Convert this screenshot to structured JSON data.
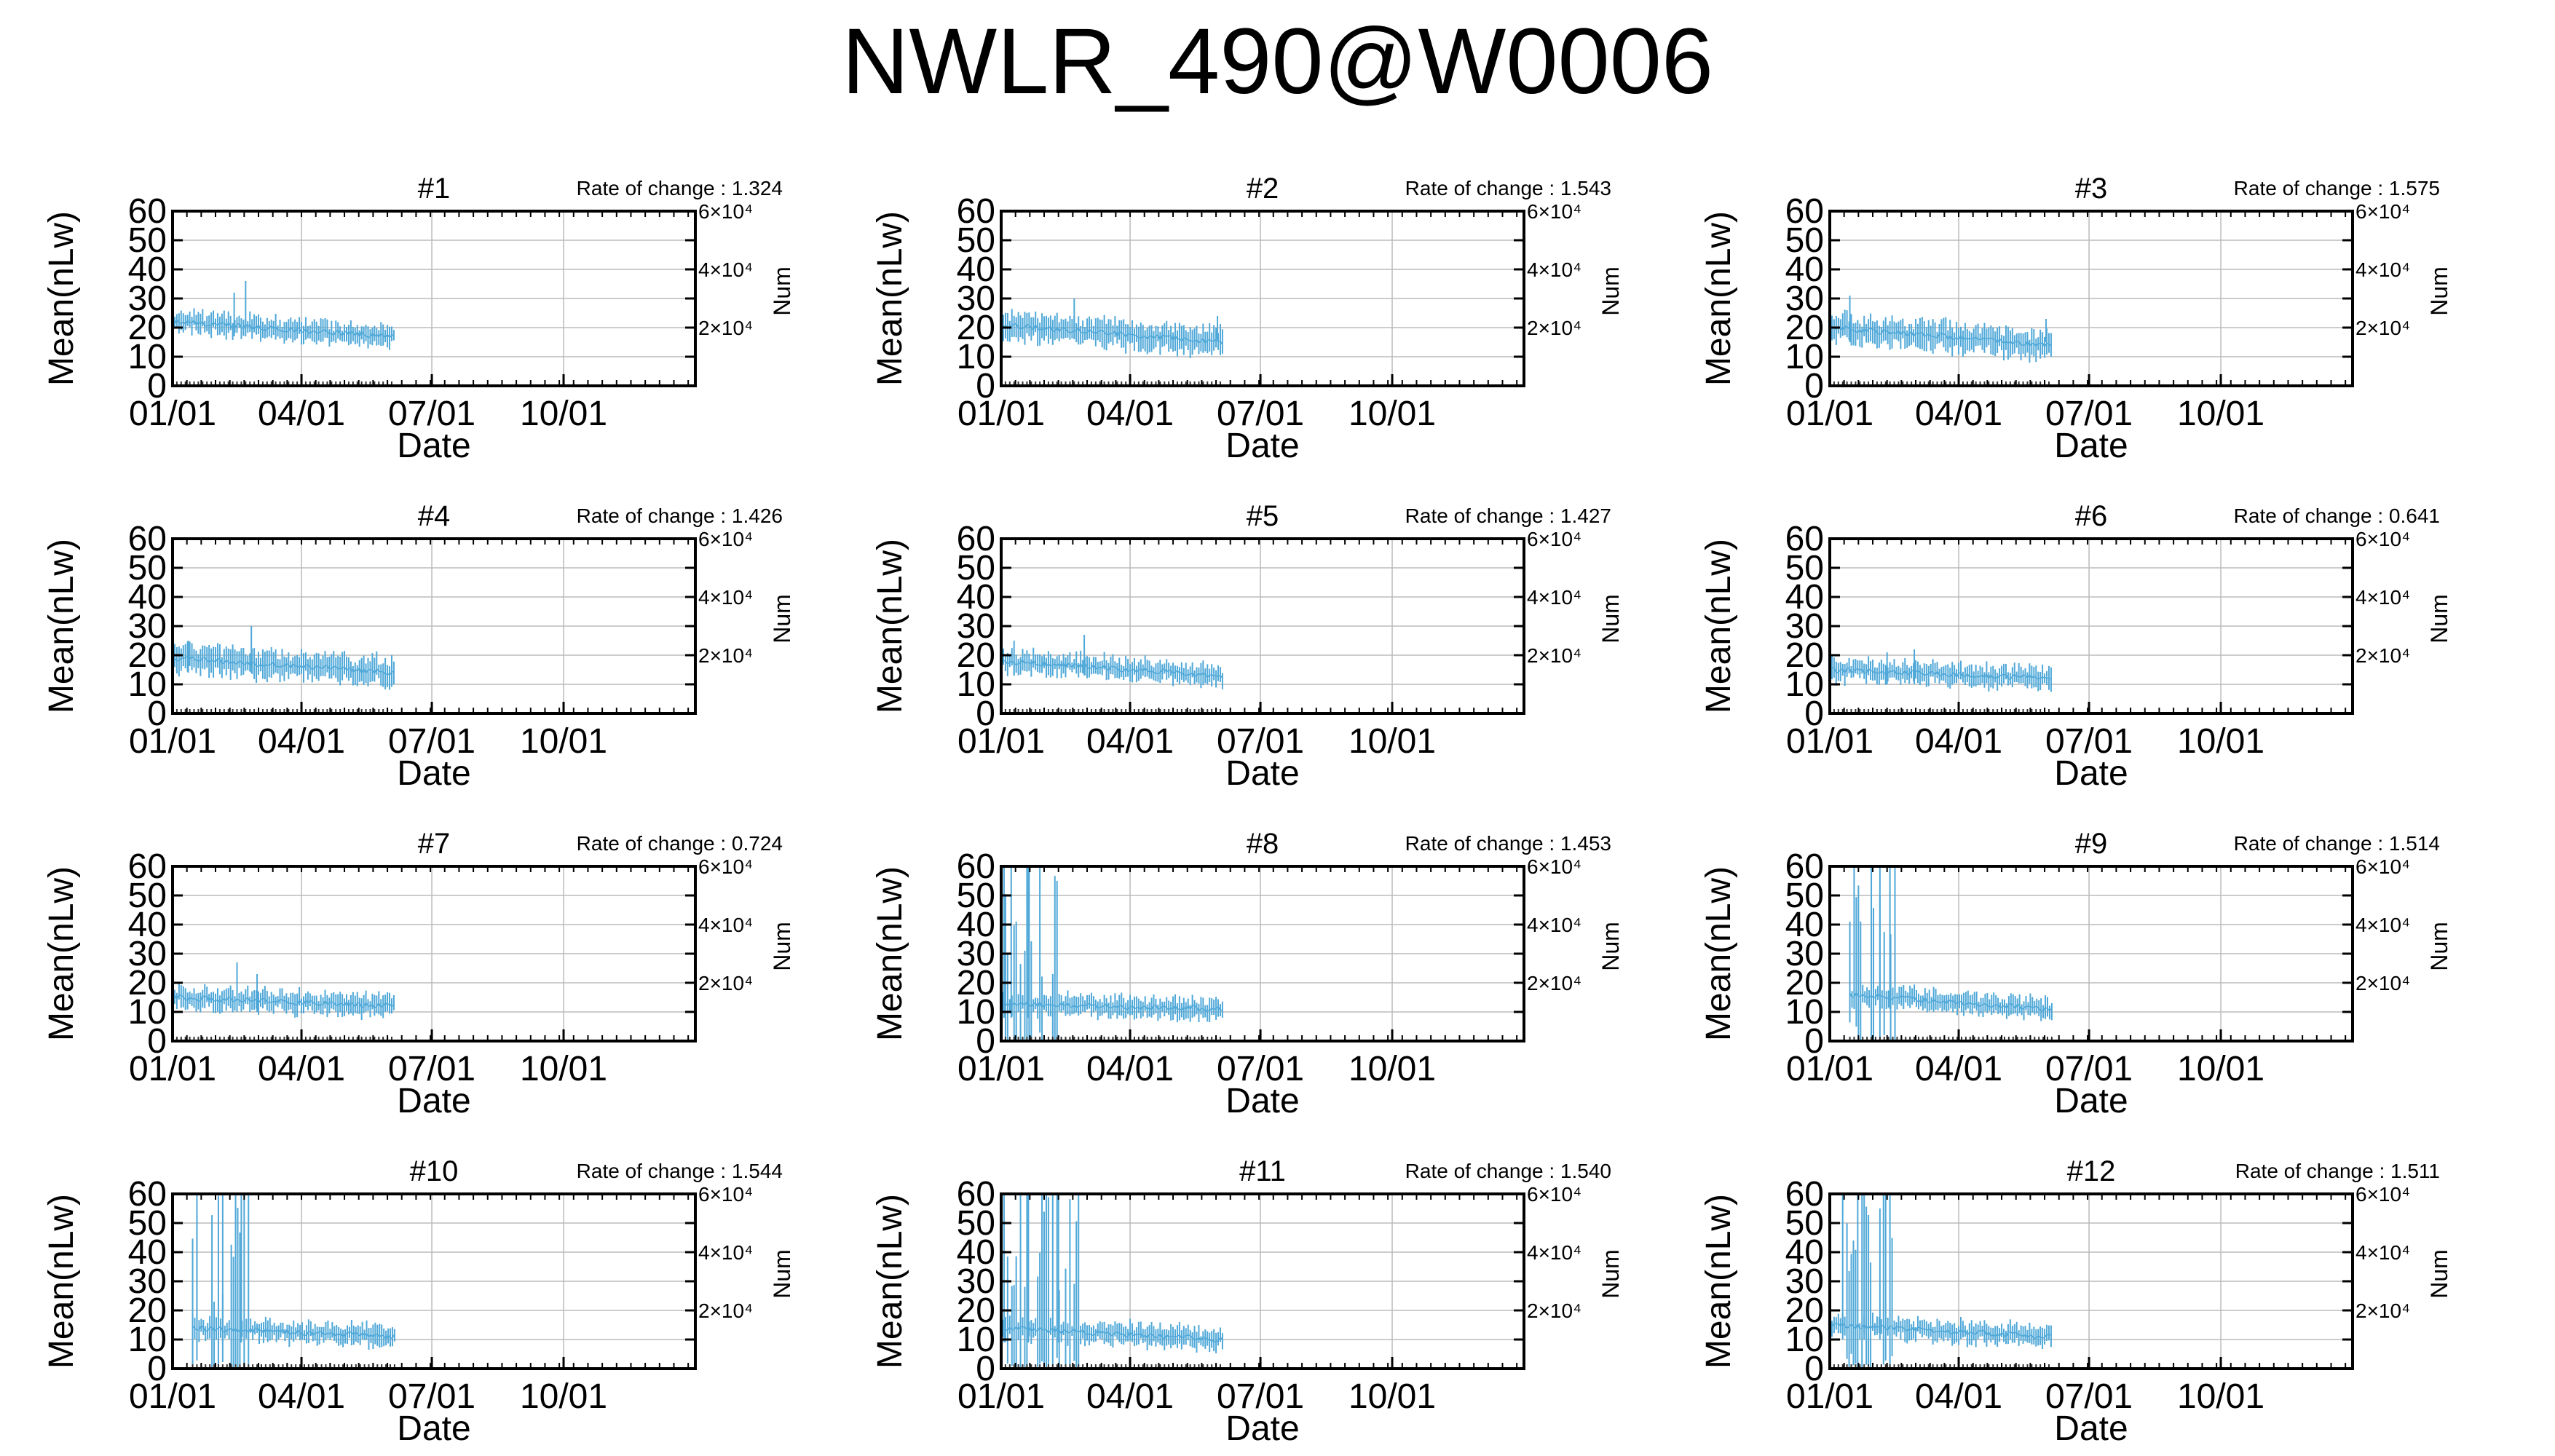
{
  "figure": {
    "title": "NWLR_490@W0006"
  },
  "colors": {
    "series": "#4fa8d8",
    "grid": "#bbbbbb",
    "frame": "#000000"
  },
  "chart_data": [
    {
      "type": "line",
      "title": "#1",
      "rate_label": "Rate of change : 1.324",
      "xlabel": "Date",
      "ylabel": "Mean(nLw)",
      "y2label": "Num",
      "x_ticks": [
        "01/01",
        "04/01",
        "07/01",
        "10/01"
      ],
      "y_ticks": [
        "0",
        "10",
        "20",
        "30",
        "40",
        "50",
        "60"
      ],
      "y2_ticks": [
        "2×10⁴",
        "4×10⁴",
        "6×10⁴"
      ],
      "ylim": [
        0,
        60
      ],
      "y2lim": [
        0,
        60000
      ],
      "x_range_days": [
        0,
        365
      ],
      "grid": true,
      "series": {
        "date_range": [
          "01/01",
          "06/05"
        ],
        "mean_start": 22,
        "mean_end": 17,
        "spread": 3,
        "spikes": [
          {
            "date": "02/21",
            "value": 36
          },
          {
            "date": "02/13",
            "value": 32
          }
        ]
      }
    },
    {
      "type": "line",
      "title": "#2",
      "rate_label": "Rate of change : 1.543",
      "xlabel": "Date",
      "ylabel": "Mean(nLw)",
      "y2label": "Num",
      "x_ticks": [
        "01/01",
        "04/01",
        "07/01",
        "10/01"
      ],
      "y_ticks": [
        "0",
        "10",
        "20",
        "30",
        "40",
        "50",
        "60"
      ],
      "y2_ticks": [
        "2×10⁴",
        "4×10⁴",
        "6×10⁴"
      ],
      "ylim": [
        0,
        60
      ],
      "y2lim": [
        0,
        60000
      ],
      "x_range_days": [
        0,
        365
      ],
      "grid": true,
      "series": {
        "date_range": [
          "01/01",
          "06/05"
        ],
        "mean_start": 21,
        "mean_end": 15,
        "spread": 4,
        "spikes": [
          {
            "date": "02/21",
            "value": 30
          },
          {
            "date": "06/01",
            "value": 24
          }
        ]
      }
    },
    {
      "type": "line",
      "title": "#3",
      "rate_label": "Rate of change : 1.575",
      "xlabel": "Date",
      "ylabel": "Mean(nLw)",
      "y2label": "Num",
      "x_ticks": [
        "01/01",
        "04/01",
        "07/01",
        "10/01"
      ],
      "y_ticks": [
        "0",
        "10",
        "20",
        "30",
        "40",
        "50",
        "60"
      ],
      "y2_ticks": [
        "2×10⁴",
        "4×10⁴",
        "6×10⁴"
      ],
      "ylim": [
        0,
        60
      ],
      "y2lim": [
        0,
        60000
      ],
      "x_range_days": [
        0,
        365
      ],
      "grid": true,
      "series": {
        "date_range": [
          "01/01",
          "06/05"
        ],
        "mean_start": 20,
        "mean_end": 14,
        "spread": 4,
        "spikes": [
          {
            "date": "01/15",
            "value": 31
          },
          {
            "date": "06/01",
            "value": 23
          }
        ]
      }
    },
    {
      "type": "line",
      "title": "#4",
      "rate_label": "Rate of change : 1.426",
      "xlabel": "Date",
      "ylabel": "Mean(nLw)",
      "y2label": "Num",
      "x_ticks": [
        "01/01",
        "04/01",
        "07/01",
        "10/01"
      ],
      "y_ticks": [
        "0",
        "10",
        "20",
        "30",
        "40",
        "50",
        "60"
      ],
      "y2_ticks": [
        "2×10⁴",
        "4×10⁴",
        "6×10⁴"
      ],
      "ylim": [
        0,
        60
      ],
      "y2lim": [
        0,
        60000
      ],
      "x_range_days": [
        0,
        365
      ],
      "grid": true,
      "series": {
        "date_range": [
          "01/01",
          "06/05"
        ],
        "mean_start": 19,
        "mean_end": 14,
        "spread": 4,
        "spikes": [
          {
            "date": "01/12",
            "value": 25
          },
          {
            "date": "02/25",
            "value": 30
          }
        ]
      }
    },
    {
      "type": "line",
      "title": "#5",
      "rate_label": "Rate of change : 1.427",
      "xlabel": "Date",
      "ylabel": "Mean(nLw)",
      "y2label": "Num",
      "x_ticks": [
        "01/01",
        "04/01",
        "07/01",
        "10/01"
      ],
      "y_ticks": [
        "0",
        "10",
        "20",
        "30",
        "40",
        "50",
        "60"
      ],
      "y2_ticks": [
        "2×10⁴",
        "4×10⁴",
        "6×10⁴"
      ],
      "ylim": [
        0,
        60
      ],
      "y2lim": [
        0,
        60000
      ],
      "x_range_days": [
        0,
        365
      ],
      "grid": true,
      "series": {
        "date_range": [
          "01/01",
          "06/05"
        ],
        "mean_start": 18,
        "mean_end": 13,
        "spread": 3,
        "spikes": [
          {
            "date": "01/10",
            "value": 25
          },
          {
            "date": "02/28",
            "value": 27
          }
        ]
      }
    },
    {
      "type": "line",
      "title": "#6",
      "rate_label": "Rate of change : 0.641",
      "xlabel": "Date",
      "ylabel": "Mean(nLw)",
      "y2label": "Num",
      "x_ticks": [
        "01/01",
        "04/01",
        "07/01",
        "10/01"
      ],
      "y_ticks": [
        "0",
        "10",
        "20",
        "30",
        "40",
        "50",
        "60"
      ],
      "y2_ticks": [
        "2×10⁴",
        "4×10⁴",
        "6×10⁴"
      ],
      "ylim": [
        0,
        60
      ],
      "y2lim": [
        0,
        60000
      ],
      "x_range_days": [
        0,
        365
      ],
      "grid": true,
      "series": {
        "date_range": [
          "01/01",
          "06/05"
        ],
        "mean_start": 15,
        "mean_end": 12,
        "spread": 3,
        "spikes": [
          {
            "date": "02/10",
            "value": 21
          },
          {
            "date": "03/01",
            "value": 22
          }
        ]
      }
    },
    {
      "type": "line",
      "title": "#7",
      "rate_label": "Rate of change : 0.724",
      "xlabel": "Date",
      "ylabel": "Mean(nLw)",
      "y2label": "Num",
      "x_ticks": [
        "01/01",
        "04/01",
        "07/01",
        "10/01"
      ],
      "y_ticks": [
        "0",
        "10",
        "20",
        "30",
        "40",
        "50",
        "60"
      ],
      "y2_ticks": [
        "2×10⁴",
        "4×10⁴",
        "6×10⁴"
      ],
      "ylim": [
        0,
        60
      ],
      "y2lim": [
        0,
        60000
      ],
      "x_range_days": [
        0,
        365
      ],
      "grid": true,
      "series": {
        "date_range": [
          "01/01",
          "06/05"
        ],
        "mean_start": 15,
        "mean_end": 12,
        "spread": 3,
        "spikes": [
          {
            "date": "02/15",
            "value": 27
          },
          {
            "date": "03/01",
            "value": 23
          }
        ]
      }
    },
    {
      "type": "line",
      "title": "#8",
      "rate_label": "Rate of change : 1.453",
      "xlabel": "Date",
      "ylabel": "Mean(nLw)",
      "y2label": "Num",
      "x_ticks": [
        "01/01",
        "04/01",
        "07/01",
        "10/01"
      ],
      "y_ticks": [
        "0",
        "10",
        "20",
        "30",
        "40",
        "50",
        "60"
      ],
      "y2_ticks": [
        "2×10⁴",
        "4×10⁴",
        "6×10⁴"
      ],
      "ylim": [
        0,
        60
      ],
      "y2lim": [
        0,
        60000
      ],
      "x_range_days": [
        0,
        365
      ],
      "grid": true,
      "series": {
        "date_range": [
          "01/01",
          "06/05"
        ],
        "mean_start": 13,
        "mean_end": 11,
        "spread": 3,
        "noisy_until": "02/10",
        "spikes": [
          {
            "date": "01/03",
            "value": 60
          },
          {
            "date": "01/08",
            "value": 60
          },
          {
            "date": "01/20",
            "value": 60
          }
        ]
      }
    },
    {
      "type": "line",
      "title": "#9",
      "rate_label": "Rate of change : 1.514",
      "xlabel": "Date",
      "ylabel": "Mean(nLw)",
      "y2label": "Num",
      "x_ticks": [
        "01/01",
        "04/01",
        "07/01",
        "10/01"
      ],
      "y_ticks": [
        "0",
        "10",
        "20",
        "30",
        "40",
        "50",
        "60"
      ],
      "y2_ticks": [
        "2×10⁴",
        "4×10⁴",
        "6×10⁴"
      ],
      "ylim": [
        0,
        60
      ],
      "y2lim": [
        0,
        60000
      ],
      "x_range_days": [
        0,
        365
      ],
      "grid": true,
      "series": {
        "date_range": [
          "01/15",
          "06/05"
        ],
        "mean_start": 16,
        "mean_end": 11,
        "spread": 3,
        "noisy_until": "02/20",
        "spikes": [
          {
            "date": "01/18",
            "value": 60
          },
          {
            "date": "02/05",
            "value": 60
          },
          {
            "date": "02/12",
            "value": 60
          }
        ]
      }
    },
    {
      "type": "line",
      "title": "#10",
      "rate_label": "Rate of change : 1.544",
      "xlabel": "Date",
      "ylabel": "Mean(nLw)",
      "y2label": "Num",
      "x_ticks": [
        "01/01",
        "04/01",
        "07/01",
        "10/01"
      ],
      "y_ticks": [
        "0",
        "10",
        "20",
        "30",
        "40",
        "50",
        "60"
      ],
      "y2_ticks": [
        "2×10⁴",
        "4×10⁴",
        "6×10⁴"
      ],
      "ylim": [
        0,
        60
      ],
      "y2lim": [
        0,
        60000
      ],
      "x_range_days": [
        0,
        365
      ],
      "grid": true,
      "series": {
        "date_range": [
          "01/15",
          "06/05"
        ],
        "mean_start": 14,
        "mean_end": 11,
        "spread": 3,
        "noisy_until": "02/25",
        "spikes": [
          {
            "date": "01/18",
            "value": 60
          },
          {
            "date": "02/05",
            "value": 60
          },
          {
            "date": "02/18",
            "value": 60
          }
        ]
      }
    },
    {
      "type": "line",
      "title": "#11",
      "rate_label": "Rate of change : 1.540",
      "xlabel": "Date",
      "ylabel": "Mean(nLw)",
      "y2label": "Num",
      "x_ticks": [
        "01/01",
        "04/01",
        "07/01",
        "10/01"
      ],
      "y_ticks": [
        "0",
        "10",
        "20",
        "30",
        "40",
        "50",
        "60"
      ],
      "y2_ticks": [
        "2×10⁴",
        "4×10⁴",
        "6×10⁴"
      ],
      "ylim": [
        0,
        60
      ],
      "y2lim": [
        0,
        60000
      ],
      "x_range_days": [
        0,
        365
      ],
      "grid": true,
      "series": {
        "date_range": [
          "01/01",
          "06/05"
        ],
        "mean_start": 14,
        "mean_end": 10,
        "spread": 3,
        "noisy_until": "02/25",
        "spikes": [
          {
            "date": "01/03",
            "value": 60
          },
          {
            "date": "01/20",
            "value": 60
          },
          {
            "date": "02/10",
            "value": 60
          }
        ]
      }
    },
    {
      "type": "line",
      "title": "#12",
      "rate_label": "Rate of change : 1.511",
      "xlabel": "Date",
      "ylabel": "Mean(nLw)",
      "y2label": "Num",
      "x_ticks": [
        "01/01",
        "04/01",
        "07/01",
        "10/01"
      ],
      "y_ticks": [
        "0",
        "10",
        "20",
        "30",
        "40",
        "50",
        "60"
      ],
      "y2_ticks": [
        "2×10⁴",
        "4×10⁴",
        "6×10⁴"
      ],
      "ylim": [
        0,
        60
      ],
      "y2lim": [
        0,
        60000
      ],
      "x_range_days": [
        0,
        365
      ],
      "grid": true,
      "series": {
        "date_range": [
          "01/01",
          "06/05"
        ],
        "mean_start": 15,
        "mean_end": 11,
        "spread": 3,
        "noisy_until": "02/15",
        "spikes": [
          {
            "date": "01/10",
            "value": 60
          },
          {
            "date": "01/25",
            "value": 60
          },
          {
            "date": "02/05",
            "value": 55
          }
        ]
      }
    }
  ]
}
